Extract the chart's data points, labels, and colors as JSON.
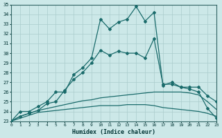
{
  "title": "",
  "xlabel": "Humidex (Indice chaleur)",
  "ylabel": "",
  "xlim": [
    0,
    23
  ],
  "ylim": [
    23,
    35
  ],
  "background_color": "#cce8e8",
  "grid_color": "#aacccc",
  "line_color": "#1a6b6b",
  "x_ticks": [
    0,
    1,
    2,
    3,
    4,
    5,
    6,
    7,
    8,
    9,
    10,
    11,
    12,
    13,
    14,
    15,
    16,
    17,
    18,
    19,
    20,
    21,
    22,
    23
  ],
  "y_ticks": [
    23,
    24,
    25,
    26,
    27,
    28,
    29,
    30,
    31,
    32,
    33,
    34,
    35
  ],
  "curve1_x": [
    0,
    1,
    2,
    3,
    4,
    5,
    6,
    7,
    8,
    9,
    10,
    11,
    12,
    13,
    14,
    15,
    16,
    17,
    18,
    19,
    20,
    21,
    22,
    23
  ],
  "curve1_y": [
    23.0,
    24.0,
    24.0,
    24.5,
    25.0,
    26.0,
    26.0,
    27.8,
    28.5,
    29.5,
    33.5,
    32.5,
    33.2,
    33.5,
    34.8,
    33.3,
    34.2,
    26.7,
    27.0,
    26.5,
    26.3,
    26.0,
    24.3,
    23.3
  ],
  "curve2_x": [
    0,
    1,
    2,
    3,
    4,
    5,
    6,
    7,
    8,
    9,
    10,
    11,
    12,
    13,
    14,
    15,
    16,
    17,
    18,
    19,
    20,
    21,
    22,
    23
  ],
  "curve2_y": [
    23.0,
    23.5,
    23.8,
    24.1,
    24.8,
    25.0,
    26.2,
    27.3,
    28.0,
    29.0,
    30.3,
    29.8,
    30.2,
    30.0,
    30.0,
    29.5,
    31.5,
    26.8,
    26.8,
    26.5,
    26.5,
    26.5,
    25.6,
    25.0
  ],
  "curve3_x": [
    0,
    1,
    2,
    3,
    4,
    5,
    6,
    7,
    8,
    9,
    10,
    11,
    12,
    13,
    14,
    15,
    16,
    17,
    18,
    19,
    20,
    21,
    22,
    23
  ],
  "curve3_y": [
    23.0,
    23.5,
    23.8,
    24.1,
    24.3,
    24.5,
    24.7,
    24.9,
    25.1,
    25.2,
    25.4,
    25.5,
    25.6,
    25.7,
    25.8,
    25.9,
    26.0,
    26.0,
    26.0,
    26.0,
    25.9,
    25.7,
    25.0,
    24.2
  ],
  "curve4_x": [
    0,
    1,
    2,
    3,
    4,
    5,
    6,
    7,
    8,
    9,
    10,
    11,
    12,
    13,
    14,
    15,
    16,
    17,
    18,
    19,
    20,
    21,
    22,
    23
  ],
  "curve4_y": [
    23.0,
    23.3,
    23.6,
    23.9,
    24.0,
    24.1,
    24.2,
    24.3,
    24.4,
    24.5,
    24.6,
    24.6,
    24.6,
    24.7,
    24.7,
    24.7,
    24.6,
    24.4,
    24.3,
    24.2,
    24.1,
    24.0,
    23.8,
    23.5
  ]
}
